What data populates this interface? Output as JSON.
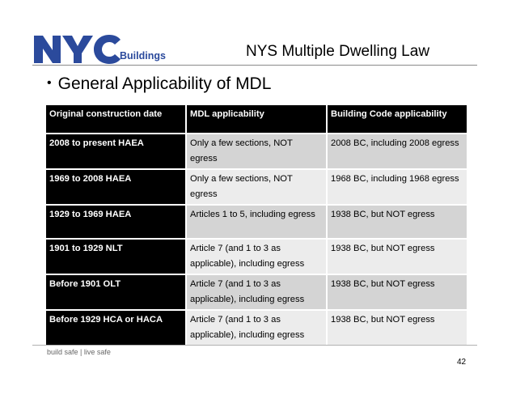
{
  "logo": {
    "mark": "NYC",
    "subtitle": "Buildings"
  },
  "title": "NYS Multiple Dwelling Law",
  "bullet": "General Applicability of MDL",
  "table": {
    "headers": [
      "Original construction date",
      "MDL applicability",
      "Building Code applicability"
    ],
    "rows": [
      [
        "2008 to present HAEA",
        "Only a few sections, NOT egress",
        "2008 BC, including 2008 egress"
      ],
      [
        "1969 to 2008 HAEA",
        "Only a few sections, NOT egress",
        "1968 BC, including 1968 egress"
      ],
      [
        "1929 to 1969 HAEA",
        "Articles 1 to 5, including egress",
        "1938 BC, but NOT egress"
      ],
      [
        "1901 to 1929 NLT",
        "Article 7 (and 1 to 3 as applicable), including egress",
        "1938 BC, but NOT egress"
      ],
      [
        "Before 1901 OLT",
        "Article 7 (and 1 to 3 as applicable), including egress",
        "1938 BC, but NOT egress"
      ],
      [
        "Before 1929 HCA or HACA",
        "Article 7 (and 1 to 3 as applicable), including egress",
        "1938 BC, but NOT egress"
      ]
    ]
  },
  "footer": {
    "left": "build safe",
    "sep": "|",
    "right": "live safe"
  },
  "page_number": "42",
  "colors": {
    "brand_blue": "#2b4a9c",
    "header_bg": "#000000",
    "row_dark": "#d4d4d4",
    "row_light": "#ececec"
  }
}
